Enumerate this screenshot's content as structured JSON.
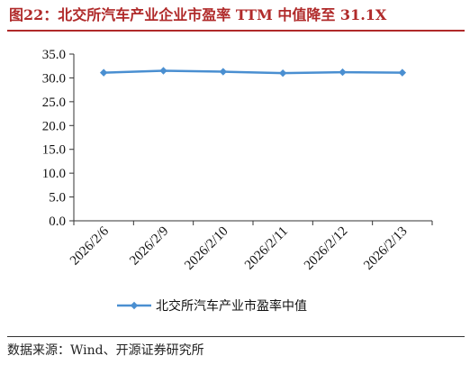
{
  "title": "图22：北交所汽车产业企业市盈率 TTM 中值降至 31.1X",
  "source": "数据来源：Wind、开源证券研究所",
  "colors": {
    "title": "#b02a2a",
    "series": "#4a8fd1"
  },
  "chart_data": {
    "type": "line",
    "categories": [
      "2026/2/6",
      "2026/2/9",
      "2026/2/10",
      "2026/2/11",
      "2026/2/12",
      "2026/2/13"
    ],
    "series": [
      {
        "name": "北交所汽车产业市盈率中值",
        "values": [
          31.1,
          31.5,
          31.3,
          31.0,
          31.2,
          31.1
        ],
        "marker": "diamond"
      }
    ],
    "y_ticks": [
      "0.0",
      "5.0",
      "10.0",
      "15.0",
      "20.0",
      "25.0",
      "30.0",
      "35.0"
    ],
    "ylim": [
      0,
      35
    ],
    "grid": false,
    "legend": "bottom"
  }
}
